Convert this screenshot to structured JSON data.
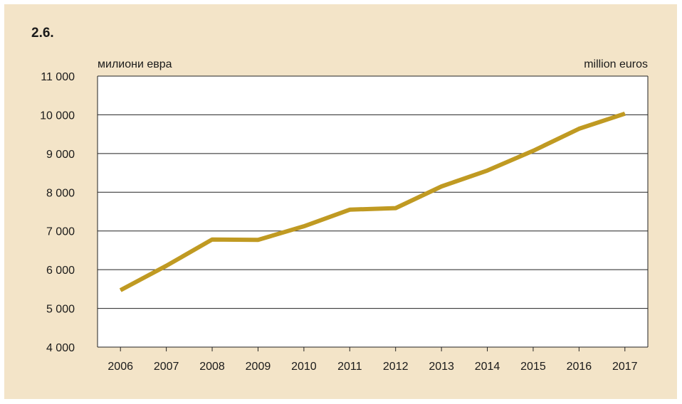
{
  "figure_number": "2.6.",
  "colors": {
    "background": "#f3e4c8",
    "plot_area": "#ffffff",
    "line": "#c09a22",
    "grid": "#222222"
  },
  "chart_data": {
    "type": "line",
    "unit_left": "милиони евра",
    "unit_right": "million euros",
    "categories": [
      "2006",
      "2007",
      "2008",
      "2009",
      "2010",
      "2011",
      "2012",
      "2013",
      "2014",
      "2015",
      "2016",
      "2017"
    ],
    "series": [
      {
        "values": [
          5470,
          6100,
          6780,
          6770,
          7120,
          7550,
          7590,
          8150,
          8560,
          9070,
          9640,
          10030
        ]
      }
    ],
    "ylim": [
      4000,
      11000
    ],
    "yticks": [
      4000,
      5000,
      6000,
      7000,
      8000,
      9000,
      10000,
      11000
    ],
    "ytick_labels": [
      "4 000",
      "5 000",
      "6 000",
      "7 000",
      "8 000",
      "9 000",
      "10 000",
      "11 000"
    ],
    "grid": true,
    "legend": "none"
  }
}
